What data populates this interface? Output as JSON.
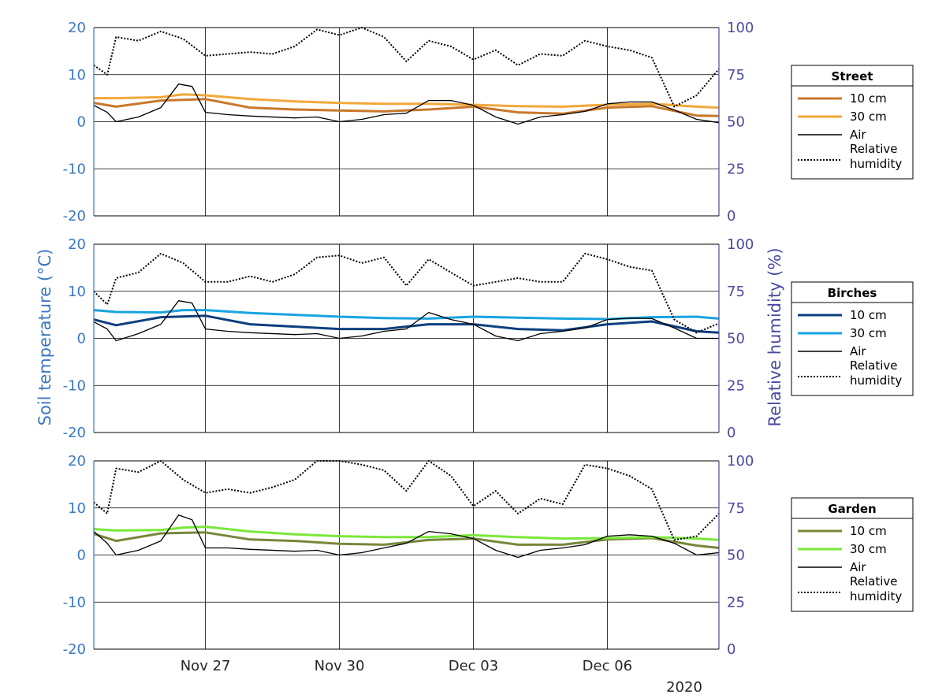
{
  "chart_data": {
    "type": "line",
    "shared": {
      "ylabel_left": "Soil temperature (°C)",
      "ylabel_right": "Relative humidity (%)",
      "x_ticks": [
        "Nov 27",
        "Nov 30",
        "Dec 03",
        "Dec 06"
      ],
      "x_tick_days": [
        27,
        30,
        33,
        36
      ],
      "x_range_days": [
        24.5,
        38.5
      ],
      "year_label": "2020",
      "ylim_left": [
        -20,
        20
      ],
      "ylim_right": [
        0,
        100
      ],
      "yticks_left": [
        "20",
        "10",
        "0",
        "-10",
        "-20"
      ],
      "yticks_right": [
        "100",
        "75",
        "50",
        "25",
        "0"
      ],
      "grid": true,
      "legend_placement": "right",
      "colors": {
        "left_axis": "#3a78c2",
        "right_axis": "#4a4aa0",
        "air": "#000000",
        "humidity": "#000000"
      }
    },
    "panels": [
      {
        "title": "Street",
        "series": [
          {
            "name": "10 cm",
            "color": "#c8782a",
            "style": "solid",
            "axis": "left",
            "x": [
              24.5,
              25,
              26,
              27,
              28,
              29,
              30,
              31,
              32,
              33,
              34,
              35,
              36,
              37,
              38,
              38.5
            ],
            "y": [
              4,
              3.2,
              4.5,
              4.8,
              3,
              2.6,
              2.4,
              2.2,
              2.6,
              3.2,
              2,
              1.7,
              3,
              3.3,
              1.3,
              1.2
            ]
          },
          {
            "name": "30 cm",
            "color": "#f2a83a",
            "style": "solid",
            "axis": "left",
            "x": [
              24.5,
              25,
              26,
              26.5,
              27,
              28,
              29,
              30,
              31,
              32,
              33,
              34,
              35,
              36,
              37,
              38,
              38.5
            ],
            "y": [
              5,
              5,
              5.2,
              5.8,
              5.6,
              4.8,
              4.3,
              4,
              3.8,
              3.8,
              3.6,
              3.3,
              3.2,
              3.6,
              3.8,
              3.2,
              3
            ]
          },
          {
            "name": "Air",
            "color": "#000000",
            "style": "solid",
            "axis": "left",
            "x": [
              24.5,
              24.8,
              25,
              25.5,
              26,
              26.4,
              26.7,
              27,
              27.5,
              28,
              29,
              29.5,
              30,
              30.5,
              31,
              31.5,
              32,
              32.5,
              33,
              33.5,
              34,
              34.5,
              35,
              35.5,
              36,
              36.5,
              37,
              37.5,
              38,
              38.5
            ],
            "y": [
              3.5,
              2,
              0,
              1,
              3,
              8,
              7.5,
              2,
              1.5,
              1.2,
              0.8,
              1,
              0,
              0.5,
              1.5,
              1.8,
              4.5,
              4.5,
              3.5,
              1,
              -0.5,
              1,
              1.5,
              2.2,
              3.8,
              4.2,
              4.2,
              2.5,
              0.5,
              -0.2
            ]
          },
          {
            "name": "Relative humidity",
            "color": "#000000",
            "style": "dotted",
            "axis": "right",
            "x": [
              24.5,
              24.8,
              25,
              25.5,
              26,
              26.5,
              27,
              27.5,
              28,
              28.5,
              29,
              29.5,
              30,
              30.5,
              31,
              31.5,
              32,
              32.5,
              33,
              33.5,
              34,
              34.5,
              35,
              35.5,
              36,
              36.5,
              37,
              37.5,
              38,
              38.5
            ],
            "y": [
              80,
              75,
              95,
              93,
              98,
              94,
              85,
              86,
              87,
              86,
              90,
              99,
              96,
              100,
              95,
              82,
              93,
              90,
              83,
              88,
              80,
              86,
              85,
              93,
              90,
              88,
              84,
              58,
              64,
              78
            ]
          }
        ]
      },
      {
        "title": "Birches",
        "series": [
          {
            "name": "10 cm",
            "color": "#0d3f7e",
            "style": "solid",
            "axis": "left",
            "x": [
              24.5,
              25,
              26,
              27,
              28,
              29,
              30,
              31,
              32,
              33,
              34,
              35,
              36,
              37,
              38,
              38.5
            ],
            "y": [
              4,
              2.8,
              4.5,
              4.8,
              3,
              2.5,
              2,
              2,
              3,
              3,
              2,
              1.7,
              3,
              3.6,
              1.5,
              1.2
            ]
          },
          {
            "name": "30 cm",
            "color": "#18a4e0",
            "style": "solid",
            "axis": "left",
            "x": [
              24.5,
              25,
              26,
              26.5,
              27,
              28,
              29,
              30,
              31,
              32,
              33,
              34,
              35,
              36,
              37,
              38,
              38.5
            ],
            "y": [
              6,
              5.6,
              5.5,
              6,
              6,
              5.4,
              5,
              4.6,
              4.3,
              4.2,
              4.6,
              4.4,
              4.2,
              4.1,
              4.5,
              4.6,
              4.2
            ]
          },
          {
            "name": "Air",
            "color": "#000000",
            "style": "solid",
            "axis": "left",
            "x": [
              24.5,
              24.8,
              25,
              25.5,
              26,
              26.4,
              26.7,
              27,
              27.5,
              28,
              29,
              29.5,
              30,
              30.5,
              31,
              31.5,
              32,
              32.5,
              33,
              33.5,
              34,
              34.5,
              35,
              35.5,
              36,
              36.5,
              37,
              37.5,
              38,
              38.5
            ],
            "y": [
              3.5,
              2,
              -0.5,
              1,
              3,
              8,
              7.5,
              2,
              1.5,
              1.2,
              0.8,
              1,
              0,
              0.5,
              1.5,
              2,
              5.5,
              4,
              3,
              0.5,
              -0.5,
              1,
              1.5,
              2.2,
              4,
              4.3,
              4.2,
              2.2,
              0,
              0
            ]
          },
          {
            "name": "Relative humidity",
            "color": "#000000",
            "style": "dotted",
            "axis": "right",
            "x": [
              24.5,
              24.8,
              25,
              25.5,
              26,
              26.5,
              27,
              27.5,
              28,
              28.5,
              29,
              29.5,
              30,
              30.5,
              31,
              31.5,
              32,
              32.5,
              33,
              33.5,
              34,
              34.5,
              35,
              35.5,
              36,
              36.5,
              37,
              37.5,
              38,
              38.5
            ],
            "y": [
              75,
              68,
              82,
              85,
              95,
              90,
              80,
              80,
              83,
              80,
              84,
              93,
              94,
              90,
              93,
              78,
              92,
              85,
              78,
              80,
              82,
              80,
              80,
              95,
              92,
              88,
              86,
              60,
              53,
              58
            ]
          }
        ]
      },
      {
        "title": "Garden",
        "series": [
          {
            "name": "10 cm",
            "color": "#77873a",
            "style": "solid",
            "axis": "left",
            "x": [
              24.5,
              25,
              26,
              27,
              28,
              29,
              30,
              31,
              32,
              33,
              34,
              35,
              36,
              37,
              38,
              38.5
            ],
            "y": [
              4.5,
              3,
              4.6,
              4.8,
              3.3,
              3,
              2.4,
              2.2,
              3.2,
              3.5,
              2.2,
              2.2,
              3.3,
              3.6,
              2,
              1.5
            ]
          },
          {
            "name": "30 cm",
            "color": "#7ae83a",
            "style": "solid",
            "axis": "left",
            "x": [
              24.5,
              25,
              26,
              26.5,
              27,
              28,
              29,
              30,
              31,
              32,
              33,
              34,
              35,
              36,
              37,
              38,
              38.5
            ],
            "y": [
              5.5,
              5.2,
              5.3,
              5.8,
              6,
              5,
              4.4,
              4,
              3.8,
              3.8,
              4.2,
              3.8,
              3.5,
              3.6,
              3.8,
              3.5,
              3.2
            ]
          },
          {
            "name": "Air",
            "color": "#000000",
            "style": "solid",
            "axis": "left",
            "x": [
              24.5,
              24.8,
              25,
              25.5,
              26,
              26.4,
              26.7,
              27,
              27.5,
              28,
              29,
              29.5,
              30,
              30.5,
              31,
              31.5,
              32,
              32.5,
              33,
              33.5,
              34,
              34.5,
              35,
              35.5,
              36,
              36.5,
              37,
              37.5,
              38,
              38.5
            ],
            "y": [
              5,
              2.5,
              0,
              1,
              3,
              8.5,
              7.5,
              1.5,
              1.5,
              1.2,
              0.8,
              1,
              0,
              0.5,
              1.5,
              2.5,
              5,
              4.5,
              3.5,
              1,
              -0.5,
              1,
              1.5,
              2.2,
              4,
              4.3,
              4,
              2.5,
              0,
              0.5
            ]
          },
          {
            "name": "Relative humidity",
            "color": "#000000",
            "style": "dotted",
            "axis": "right",
            "x": [
              24.5,
              24.8,
              25,
              25.5,
              26,
              26.5,
              27,
              27.5,
              28,
              28.5,
              29,
              29.5,
              30,
              30.5,
              31,
              31.5,
              32,
              32.5,
              33,
              33.5,
              34,
              34.5,
              35,
              35.5,
              36,
              36.5,
              37,
              37.5,
              38,
              38.5
            ],
            "y": [
              78,
              72,
              96,
              94,
              100,
              90,
              83,
              85,
              83,
              86,
              90,
              100,
              100,
              98,
              95,
              84,
              100,
              92,
              76,
              84,
              72,
              80,
              77,
              98,
              96,
              92,
              85,
              58,
              60,
              72
            ]
          }
        ]
      }
    ]
  }
}
